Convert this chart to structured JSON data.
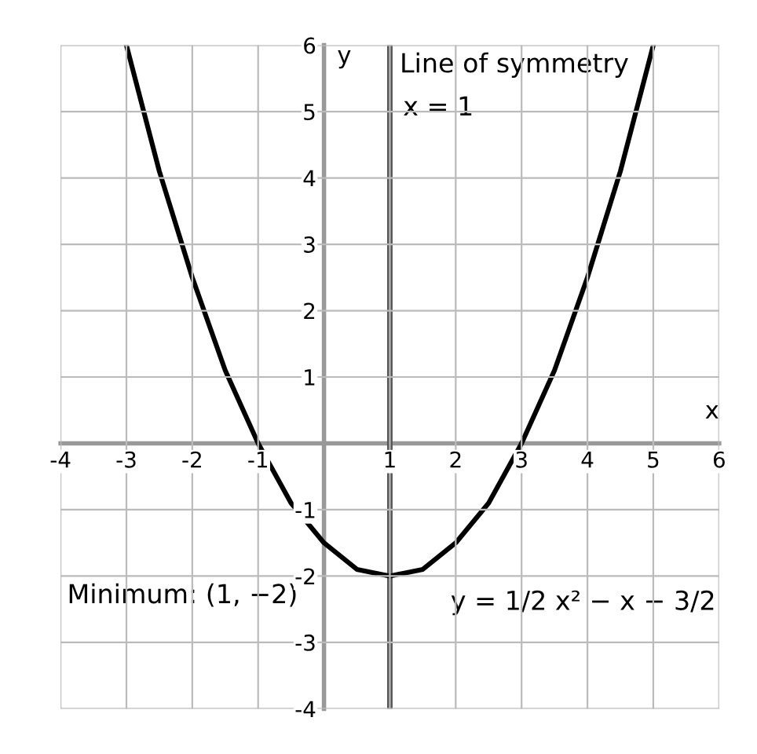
{
  "chart_data": {
    "type": "line",
    "xlabel": "x",
    "ylabel": "y",
    "x": [
      -3,
      -2.5,
      -2,
      -1.5,
      -1,
      -0.5,
      0,
      0.5,
      1,
      1.5,
      2,
      2.5,
      3,
      3.5,
      4,
      4.5,
      5
    ],
    "series": [
      {
        "color": "#000000",
        "values": [
          6,
          4.1,
          2.5,
          1.1,
          0,
          -0.9,
          -1.5,
          -1.9,
          -2,
          -1.9,
          -1.5,
          -0.9,
          0,
          1.1,
          2.5,
          4.1,
          6
        ]
      }
    ],
    "xlim": [
      -4,
      6
    ],
    "ylim": [
      -4,
      6
    ],
    "xticks": [
      -4,
      -3,
      -2,
      -1,
      1,
      2,
      3,
      4,
      5,
      6
    ],
    "yticks": [
      -4,
      -3,
      -2,
      -1,
      1,
      2,
      3,
      4,
      5,
      6
    ],
    "grid": true,
    "ref_lines": [
      {
        "axis": "x",
        "value": 1,
        "label": "Line of symmetry",
        "color": "#555555"
      }
    ],
    "annotations": [
      "x = 1",
      "Minimum: (1, −2)",
      "y = 1/2 x² − x − 3/2"
    ]
  }
}
